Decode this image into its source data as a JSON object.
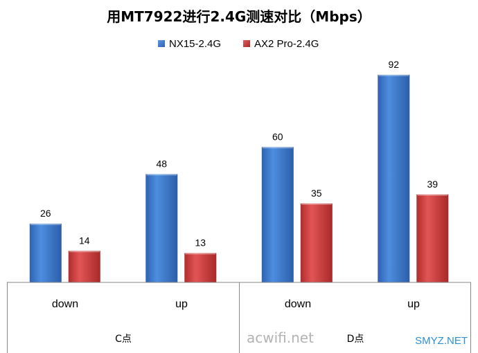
{
  "chart_data": {
    "type": "bar",
    "title": "用MT7922进行2.4G测速对比（Mbps）",
    "categories": [
      "down",
      "up",
      "down",
      "up"
    ],
    "groups": [
      {
        "label": "C点",
        "categories": [
          "down",
          "up"
        ]
      },
      {
        "label": "D点",
        "categories": [
          "down",
          "up"
        ]
      }
    ],
    "series": [
      {
        "name": "NX15-2.4G",
        "color": "#3d78cc",
        "values": [
          26,
          48,
          60,
          92
        ]
      },
      {
        "name": "AX2 Pro-2.4G",
        "color": "#cd3b3b",
        "values": [
          14,
          13,
          35,
          39
        ]
      }
    ],
    "ylim": [
      0,
      100
    ],
    "grid": false,
    "legend": "top-center",
    "data_labels": true
  },
  "watermarks": {
    "left": "acwifi.net",
    "right": "SMYZ.NET"
  }
}
